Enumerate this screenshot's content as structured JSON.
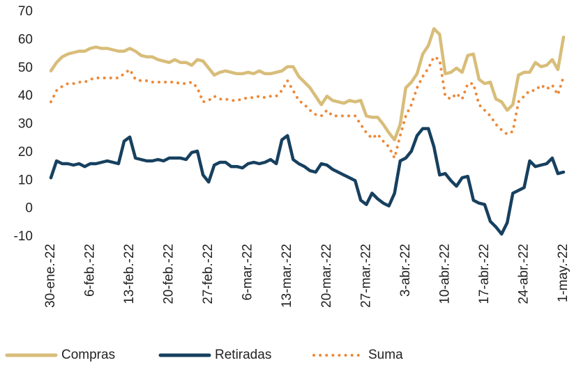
{
  "chart_data": {
    "type": "line",
    "categories": [
      "30-ene.-22",
      null,
      null,
      null,
      null,
      null,
      null,
      "6-feb.-22",
      null,
      null,
      null,
      null,
      null,
      null,
      "13-feb.-22",
      null,
      null,
      null,
      null,
      null,
      null,
      "20-feb.-22",
      null,
      null,
      null,
      null,
      null,
      null,
      "27-feb.-22",
      null,
      null,
      null,
      null,
      null,
      null,
      "6-mar.-22",
      null,
      null,
      null,
      null,
      null,
      null,
      "13-mar.-22",
      null,
      null,
      null,
      null,
      null,
      null,
      "20-mar.-22",
      null,
      null,
      null,
      null,
      null,
      null,
      "27-mar.-22",
      null,
      null,
      null,
      null,
      null,
      null,
      "3-abr.-22",
      null,
      null,
      null,
      null,
      null,
      null,
      "10-abr.-22",
      null,
      null,
      null,
      null,
      null,
      null,
      "17-abr.-22",
      null,
      null,
      null,
      null,
      null,
      null,
      "24-abr.-22",
      null,
      null,
      null,
      null,
      null,
      null,
      "1-may.-22"
    ],
    "series": [
      {
        "name": "Compras",
        "color": "#d8bd7a",
        "style": "solid",
        "values": [
          49,
          52,
          54,
          55,
          55.5,
          56,
          56,
          57,
          57.5,
          57,
          57,
          56.5,
          56,
          56,
          57,
          56,
          54.5,
          54,
          54,
          53,
          52.5,
          52,
          53,
          52,
          52,
          51,
          53,
          52.5,
          50,
          47.5,
          48.5,
          49,
          48.5,
          48,
          48,
          48.5,
          48,
          49,
          48,
          48,
          48.5,
          49,
          50.5,
          50.5,
          47,
          45,
          43,
          40,
          37,
          40,
          38.5,
          38,
          37.5,
          38.5,
          38,
          38.5,
          33,
          32.5,
          32.5,
          30,
          27,
          24.5,
          30,
          43,
          45,
          48,
          55,
          58,
          64,
          62,
          48,
          48.5,
          50,
          48.5,
          54.5,
          55,
          46,
          44.5,
          45,
          39,
          38,
          35,
          37,
          47.5,
          48.5,
          48.5,
          52,
          50.5,
          51,
          53,
          49.5,
          61
        ]
      },
      {
        "name": "Retiradas",
        "color": "#17405f",
        "style": "solid",
        "values": [
          11,
          17,
          16,
          16,
          15.5,
          16,
          15,
          16,
          16,
          16.5,
          17,
          16.5,
          16,
          24,
          25.5,
          18,
          17.5,
          17,
          17,
          17.5,
          17,
          18,
          18,
          18,
          17.5,
          20,
          20.5,
          12,
          9.5,
          15.5,
          16.5,
          16.5,
          15,
          15,
          14.5,
          16,
          16.5,
          16,
          16.5,
          17.5,
          16,
          24.5,
          26,
          17.5,
          16,
          15,
          13.5,
          13,
          16,
          15.5,
          14,
          13,
          12,
          11,
          10,
          3,
          1.5,
          5.5,
          3.5,
          2,
          1,
          5.5,
          17,
          18,
          20.5,
          26,
          28.5,
          28.5,
          22,
          12,
          12.5,
          10,
          8,
          11,
          11.5,
          3,
          2,
          1.5,
          -4.5,
          -6.5,
          -9,
          -5,
          5.5,
          6.5,
          7.5,
          17,
          15,
          15.5,
          16,
          18,
          12.5,
          13
        ]
      },
      {
        "name": "Suma",
        "color": "#ed8a3a",
        "style": "dotted",
        "values": [
          38,
          42,
          43.5,
          44.5,
          44.5,
          45,
          45,
          46,
          46.5,
          46.5,
          46.5,
          46.5,
          46.5,
          48,
          49.5,
          46,
          45.5,
          45.5,
          45,
          45,
          45,
          45,
          45,
          44.5,
          44.5,
          45,
          43,
          38,
          38.5,
          40,
          39,
          39,
          38.5,
          38.5,
          39,
          39.5,
          39.5,
          40,
          39.5,
          40,
          40,
          42,
          45.5,
          42,
          38.5,
          37,
          35,
          33.5,
          33,
          35,
          33,
          33,
          33,
          33,
          33,
          30,
          27,
          25,
          26.5,
          24,
          22,
          18,
          26,
          33,
          37,
          43,
          47,
          50,
          54,
          53,
          40,
          39,
          41,
          39,
          44.5,
          44.5,
          37,
          35,
          33,
          30,
          28,
          26.5,
          27.5,
          38,
          40,
          42,
          42,
          44,
          42.5,
          44,
          40.5,
          47
        ]
      }
    ],
    "ylim": [
      -10,
      70
    ],
    "yticks": [
      -10,
      0,
      10,
      20,
      30,
      40,
      50,
      60,
      70
    ],
    "grid": false,
    "legend": "bottom"
  }
}
